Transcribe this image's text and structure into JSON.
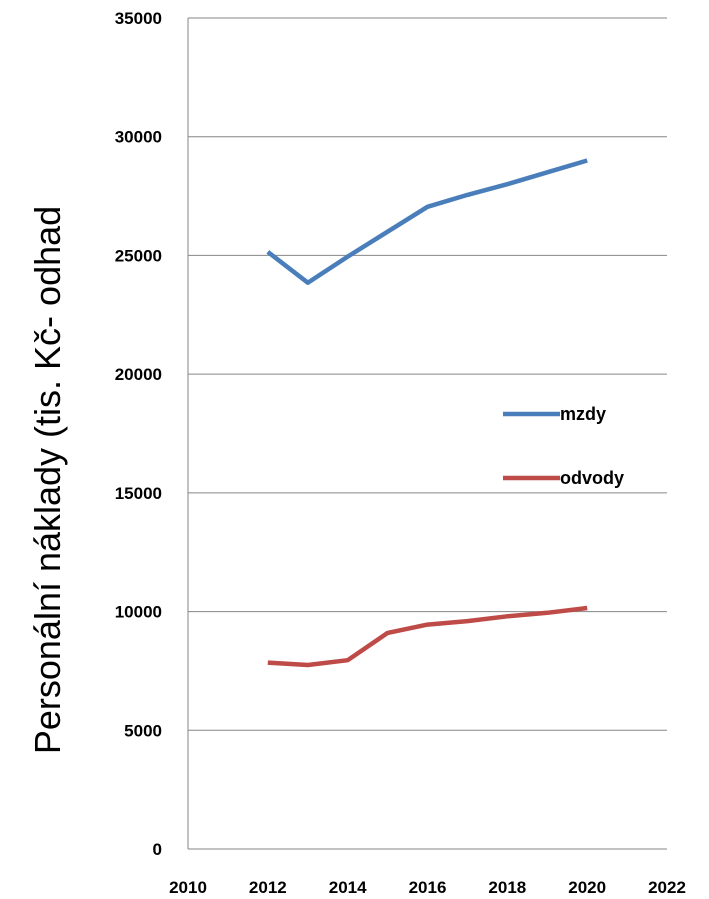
{
  "chart_data": {
    "type": "line",
    "title": "",
    "xlabel": "",
    "ylabel": "Personální náklady (tis. Kč- odhad",
    "xlim": [
      2010,
      2022
    ],
    "ylim": [
      0,
      35000
    ],
    "x_ticks": [
      "2010",
      "2012",
      "2014",
      "2016",
      "2018",
      "2020",
      "2022"
    ],
    "y_ticks": [
      "0",
      "5000",
      "10000",
      "15000",
      "20000",
      "25000",
      "30000",
      "35000"
    ],
    "grid": "horizontal",
    "legend_position": "right-middle",
    "series": [
      {
        "name": "mzdy",
        "color": "#4a7ebb",
        "x": [
          2012,
          2013,
          2014,
          2015,
          2016,
          2017,
          2018,
          2019,
          2020
        ],
        "y": [
          25150,
          23850,
          24950,
          26000,
          27050,
          27550,
          28000,
          28500,
          29000
        ]
      },
      {
        "name": "odvody",
        "color": "#be4b48",
        "x": [
          2012,
          2013,
          2014,
          2015,
          2016,
          2017,
          2018,
          2019,
          2020
        ],
        "y": [
          7850,
          7750,
          7950,
          9100,
          9450,
          9600,
          9800,
          9950,
          10150
        ]
      }
    ]
  }
}
